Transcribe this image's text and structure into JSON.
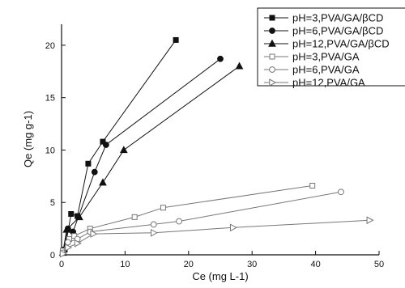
{
  "chart_data": {
    "type": "scatter",
    "title": "",
    "xlabel": "Ce (mg L-1)",
    "ylabel": "Qe (mg g-1)",
    "xlim": [
      0,
      50
    ],
    "ylim": [
      0,
      22
    ],
    "xticks": [
      0,
      10,
      20,
      30,
      40,
      50
    ],
    "yticks": [
      0,
      5,
      10,
      15,
      20
    ],
    "legend_position": "top-right",
    "grid": false,
    "series": [
      {
        "name": "pH=3,PVA/GA/βCD",
        "marker": "square",
        "filled": true,
        "points": [
          [
            0.5,
            0.5
          ],
          [
            1.5,
            3.9
          ],
          [
            2.5,
            3.7
          ],
          [
            4.2,
            8.7
          ],
          [
            6.5,
            10.8
          ],
          [
            18.0,
            20.5
          ]
        ]
      },
      {
        "name": "pH=6,PVA/GA/βCD",
        "marker": "circle",
        "filled": true,
        "points": [
          [
            0.3,
            0.3
          ],
          [
            1.0,
            2.5
          ],
          [
            1.8,
            2.2
          ],
          [
            5.2,
            7.9
          ],
          [
            7.0,
            10.5
          ],
          [
            25.0,
            18.7
          ]
        ]
      },
      {
        "name": "pH=12,PVA/GA/βCD",
        "marker": "triangle-up",
        "filled": true,
        "points": [
          [
            0.2,
            0.2
          ],
          [
            0.8,
            2.4
          ],
          [
            2.8,
            3.6
          ],
          [
            6.5,
            6.9
          ],
          [
            9.8,
            10.0
          ],
          [
            28.0,
            18.0
          ]
        ]
      },
      {
        "name": "pH=3,PVA/GA",
        "marker": "square",
        "filled": false,
        "points": [
          [
            0.2,
            0.4
          ],
          [
            1.2,
            1.5
          ],
          [
            2.0,
            1.8
          ],
          [
            4.5,
            2.5
          ],
          [
            11.5,
            3.6
          ],
          [
            16.0,
            4.5
          ],
          [
            39.5,
            6.6
          ]
        ]
      },
      {
        "name": "pH=6,PVA/GA",
        "marker": "circle",
        "filled": false,
        "points": [
          [
            0.2,
            0.2
          ],
          [
            1.0,
            1.2
          ],
          [
            2.5,
            1.5
          ],
          [
            4.5,
            2.2
          ],
          [
            14.5,
            2.9
          ],
          [
            18.5,
            3.2
          ],
          [
            44.0,
            6.0
          ]
        ]
      },
      {
        "name": "pH=12,PVA/GA",
        "marker": "triangle-right",
        "filled": false,
        "points": [
          [
            0.2,
            0.1
          ],
          [
            1.0,
            0.7
          ],
          [
            2.5,
            1.1
          ],
          [
            5.0,
            2.0
          ],
          [
            14.5,
            2.1
          ],
          [
            27.0,
            2.6
          ],
          [
            48.5,
            3.3
          ]
        ]
      }
    ]
  }
}
